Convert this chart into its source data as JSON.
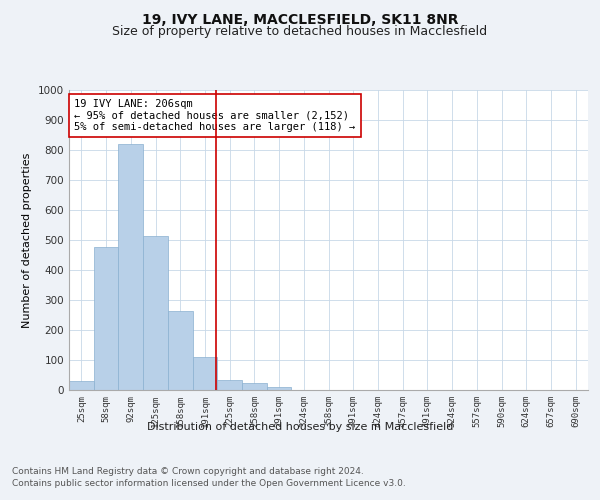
{
  "title1": "19, IVY LANE, MACCLESFIELD, SK11 8NR",
  "title2": "Size of property relative to detached houses in Macclesfield",
  "xlabel": "Distribution of detached houses by size in Macclesfield",
  "ylabel": "Number of detached properties",
  "categories": [
    "25sqm",
    "58sqm",
    "92sqm",
    "125sqm",
    "158sqm",
    "191sqm",
    "225sqm",
    "258sqm",
    "291sqm",
    "324sqm",
    "358sqm",
    "391sqm",
    "424sqm",
    "457sqm",
    "491sqm",
    "524sqm",
    "557sqm",
    "590sqm",
    "624sqm",
    "657sqm",
    "690sqm"
  ],
  "values": [
    30,
    478,
    820,
    515,
    265,
    110,
    35,
    22,
    10,
    0,
    0,
    0,
    0,
    0,
    0,
    0,
    0,
    0,
    0,
    0,
    0
  ],
  "bar_color": "#b8d0e8",
  "bar_edge_color": "#8ab0d0",
  "vline_color": "#cc0000",
  "annotation_text": "19 IVY LANE: 206sqm\n← 95% of detached houses are smaller (2,152)\n5% of semi-detached houses are larger (118) →",
  "annotation_box_color": "#ffffff",
  "annotation_box_edgecolor": "#cc0000",
  "ylim": [
    0,
    1000
  ],
  "yticks": [
    0,
    100,
    200,
    300,
    400,
    500,
    600,
    700,
    800,
    900,
    1000
  ],
  "footer_text": "Contains HM Land Registry data © Crown copyright and database right 2024.\nContains public sector information licensed under the Open Government Licence v3.0.",
  "bg_color": "#eef2f7",
  "plot_bg_color": "#ffffff",
  "grid_color": "#c8d8e8",
  "title1_fontsize": 10,
  "title2_fontsize": 9,
  "ylabel_fontsize": 8,
  "annotation_fontsize": 7.5,
  "footer_fontsize": 6.5,
  "xtick_fontsize": 6.5,
  "ytick_fontsize": 7.5
}
